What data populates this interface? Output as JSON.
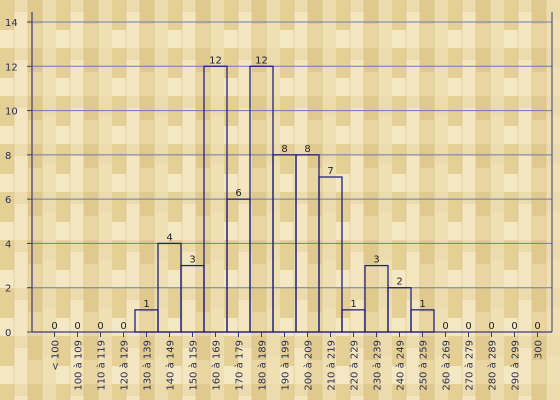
{
  "chart_data": {
    "type": "bar",
    "categories": [
      "< 100",
      "100 à 109",
      "110 à 119",
      "120 à 129",
      "130 à 139",
      "140 à 149",
      "150 à 159",
      "160 à 169",
      "170 à 179",
      "180 à 189",
      "190 à 199",
      "200 à 209",
      "210 à 219",
      "220 à 229",
      "230 à 239",
      "240 à 249",
      "250 à 259",
      "260 à 269",
      "270 à 279",
      "280 à 289",
      "290 à 299",
      "300"
    ],
    "values": [
      0,
      0,
      0,
      0,
      1,
      4,
      3,
      12,
      6,
      12,
      8,
      8,
      7,
      1,
      3,
      2,
      1,
      0,
      0,
      0,
      0,
      0
    ],
    "yticks": [
      0,
      2,
      4,
      6,
      8,
      10,
      12,
      14
    ],
    "ylim": [
      0,
      14
    ],
    "grid": true,
    "colors": {
      "background": "#ead9a8",
      "plank_dark": "#dcc58b",
      "plank_light": "#f2e4bb",
      "axis": "#3b3b7a",
      "grid": "#6e7bb0",
      "bar_fill": "none",
      "bar_stroke": "#23237a"
    }
  }
}
